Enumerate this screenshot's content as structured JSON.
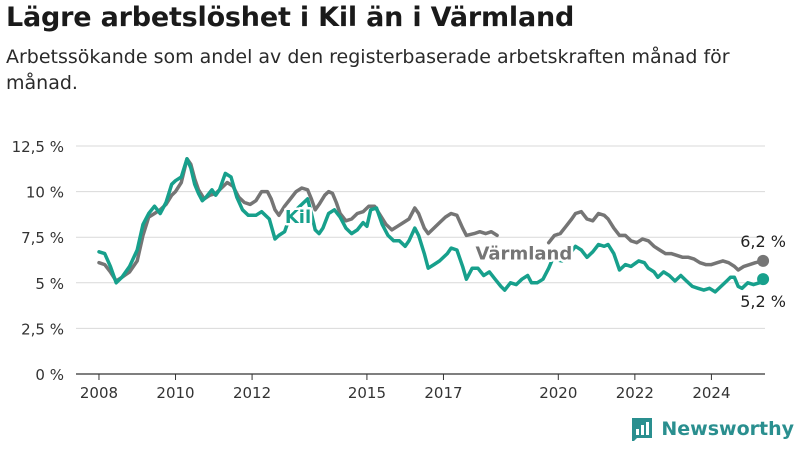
{
  "header": {
    "title": "Lägre arbetslöshet i Kil än i Värmland",
    "subtitle": "Arbetssökande som andel av den registerbaserade arbetskraften månad för månad."
  },
  "brand": {
    "name": "Newsworthy",
    "color": "#2a8f8f"
  },
  "colors": {
    "kil": "#17a08c",
    "varmland": "#757575",
    "grid": "#d9d9d9",
    "axis": "#333333"
  },
  "chart_data": {
    "type": "line",
    "x_ticks": [
      2008,
      2010,
      2012,
      2015,
      2017,
      2020,
      2022,
      2024
    ],
    "y_ticks": [
      "0 %",
      "2,5 %",
      "5 %",
      "7,5 %",
      "10 %",
      "12,5 %"
    ],
    "ylim": [
      0,
      12.5
    ],
    "xlim": [
      2007.4,
      2025.4
    ],
    "grid": true,
    "series": [
      {
        "name": "Kil",
        "color": "#17a08c",
        "label_year": 2013.2,
        "label_value": 8.6,
        "end_label": "5,2 %",
        "points": [
          [
            2008.0,
            6.7
          ],
          [
            2008.15,
            6.6
          ],
          [
            2008.3,
            5.9
          ],
          [
            2008.45,
            5.0
          ],
          [
            2008.6,
            5.3
          ],
          [
            2008.8,
            5.9
          ],
          [
            2009.0,
            6.8
          ],
          [
            2009.15,
            8.2
          ],
          [
            2009.3,
            8.8
          ],
          [
            2009.45,
            9.2
          ],
          [
            2009.6,
            8.8
          ],
          [
            2009.75,
            9.4
          ],
          [
            2009.9,
            10.4
          ],
          [
            2010.0,
            10.6
          ],
          [
            2010.15,
            10.8
          ],
          [
            2010.3,
            11.8
          ],
          [
            2010.4,
            11.3
          ],
          [
            2010.5,
            10.4
          ],
          [
            2010.6,
            9.9
          ],
          [
            2010.7,
            9.5
          ],
          [
            2010.8,
            9.7
          ],
          [
            2010.95,
            10.1
          ],
          [
            2011.05,
            9.8
          ],
          [
            2011.15,
            10.1
          ],
          [
            2011.3,
            11.0
          ],
          [
            2011.45,
            10.8
          ],
          [
            2011.6,
            9.7
          ],
          [
            2011.75,
            9.0
          ],
          [
            2011.9,
            8.7
          ],
          [
            2012.1,
            8.7
          ],
          [
            2012.25,
            8.9
          ],
          [
            2012.45,
            8.5
          ],
          [
            2012.6,
            7.4
          ],
          [
            2012.7,
            7.6
          ],
          [
            2012.85,
            7.8
          ],
          [
            2013.0,
            8.7
          ],
          [
            2013.15,
            9.0
          ],
          [
            2013.3,
            9.3
          ],
          [
            2013.45,
            9.6
          ],
          [
            2013.55,
            8.8
          ],
          [
            2013.65,
            7.9
          ],
          [
            2013.75,
            7.7
          ],
          [
            2013.85,
            8.0
          ],
          [
            2014.0,
            8.8
          ],
          [
            2014.15,
            9.0
          ],
          [
            2014.3,
            8.6
          ],
          [
            2014.45,
            8.0
          ],
          [
            2014.6,
            7.7
          ],
          [
            2014.75,
            7.9
          ],
          [
            2014.9,
            8.3
          ],
          [
            2015.0,
            8.1
          ],
          [
            2015.1,
            9.0
          ],
          [
            2015.25,
            9.1
          ],
          [
            2015.4,
            8.2
          ],
          [
            2015.55,
            7.6
          ],
          [
            2015.7,
            7.3
          ],
          [
            2015.85,
            7.3
          ],
          [
            2016.0,
            7.0
          ],
          [
            2016.1,
            7.3
          ],
          [
            2016.25,
            8.0
          ],
          [
            2016.35,
            7.6
          ],
          [
            2016.5,
            6.6
          ],
          [
            2016.6,
            5.8
          ],
          [
            2016.75,
            6.0
          ],
          [
            2016.9,
            6.2
          ],
          [
            2017.1,
            6.6
          ],
          [
            2017.2,
            6.9
          ],
          [
            2017.35,
            6.8
          ],
          [
            2017.5,
            5.9
          ],
          [
            2017.6,
            5.2
          ],
          [
            2017.75,
            5.8
          ],
          [
            2017.9,
            5.8
          ],
          [
            2018.05,
            5.4
          ],
          [
            2018.2,
            5.6
          ],
          [
            2018.35,
            5.2
          ],
          [
            2018.5,
            4.8
          ],
          [
            2018.6,
            4.6
          ],
          [
            2018.75,
            5.0
          ],
          [
            2018.9,
            4.9
          ],
          [
            2019.05,
            5.2
          ],
          [
            2019.2,
            5.4
          ],
          [
            2019.3,
            5.0
          ],
          [
            2019.45,
            5.0
          ],
          [
            2019.6,
            5.2
          ],
          [
            2019.75,
            5.8
          ],
          [
            2019.85,
            6.3
          ],
          [
            2020.1,
            6.2
          ],
          [
            2020.3,
            6.6
          ],
          [
            2020.45,
            7.0
          ],
          [
            2020.6,
            6.8
          ],
          [
            2020.75,
            6.4
          ],
          [
            2020.9,
            6.7
          ],
          [
            2021.05,
            7.1
          ],
          [
            2021.2,
            7.0
          ],
          [
            2021.3,
            7.1
          ],
          [
            2021.45,
            6.6
          ],
          [
            2021.6,
            5.7
          ],
          [
            2021.75,
            6.0
          ],
          [
            2021.9,
            5.9
          ],
          [
            2022.1,
            6.2
          ],
          [
            2022.25,
            6.1
          ],
          [
            2022.35,
            5.8
          ],
          [
            2022.5,
            5.6
          ],
          [
            2022.6,
            5.3
          ],
          [
            2022.75,
            5.6
          ],
          [
            2022.9,
            5.4
          ],
          [
            2023.05,
            5.1
          ],
          [
            2023.2,
            5.4
          ],
          [
            2023.35,
            5.1
          ],
          [
            2023.5,
            4.8
          ],
          [
            2023.65,
            4.7
          ],
          [
            2023.8,
            4.6
          ],
          [
            2023.95,
            4.7
          ],
          [
            2024.1,
            4.5
          ],
          [
            2024.25,
            4.8
          ],
          [
            2024.4,
            5.1
          ],
          [
            2024.5,
            5.3
          ],
          [
            2024.6,
            5.3
          ],
          [
            2024.7,
            4.8
          ],
          [
            2024.8,
            4.7
          ],
          [
            2024.95,
            5.0
          ],
          [
            2025.1,
            4.9
          ],
          [
            2025.25,
            5.0
          ],
          [
            2025.35,
            5.2
          ]
        ]
      },
      {
        "name": "Värmland",
        "color": "#757575",
        "label_year": 2019.1,
        "label_value": 6.6,
        "end_label": "6,2 %",
        "points": [
          [
            2008.0,
            6.1
          ],
          [
            2008.15,
            6.0
          ],
          [
            2008.3,
            5.6
          ],
          [
            2008.45,
            5.1
          ],
          [
            2008.6,
            5.3
          ],
          [
            2008.8,
            5.6
          ],
          [
            2009.0,
            6.2
          ],
          [
            2009.15,
            7.6
          ],
          [
            2009.3,
            8.6
          ],
          [
            2009.45,
            8.8
          ],
          [
            2009.6,
            9.0
          ],
          [
            2009.75,
            9.3
          ],
          [
            2009.9,
            9.8
          ],
          [
            2010.0,
            10.0
          ],
          [
            2010.15,
            10.5
          ],
          [
            2010.3,
            11.8
          ],
          [
            2010.4,
            11.5
          ],
          [
            2010.5,
            10.7
          ],
          [
            2010.6,
            10.1
          ],
          [
            2010.75,
            9.6
          ],
          [
            2010.9,
            9.8
          ],
          [
            2011.05,
            9.9
          ],
          [
            2011.2,
            10.2
          ],
          [
            2011.35,
            10.5
          ],
          [
            2011.5,
            10.3
          ],
          [
            2011.65,
            9.7
          ],
          [
            2011.8,
            9.4
          ],
          [
            2011.95,
            9.3
          ],
          [
            2012.1,
            9.5
          ],
          [
            2012.25,
            10.0
          ],
          [
            2012.4,
            10.0
          ],
          [
            2012.5,
            9.6
          ],
          [
            2012.6,
            9.0
          ],
          [
            2012.7,
            8.7
          ],
          [
            2012.85,
            9.2
          ],
          [
            2013.0,
            9.6
          ],
          [
            2013.15,
            10.0
          ],
          [
            2013.3,
            10.2
          ],
          [
            2013.45,
            10.1
          ],
          [
            2013.55,
            9.6
          ],
          [
            2013.65,
            9.0
          ],
          [
            2013.75,
            9.3
          ],
          [
            2013.9,
            9.8
          ],
          [
            2014.0,
            10.0
          ],
          [
            2014.1,
            9.9
          ],
          [
            2014.2,
            9.4
          ],
          [
            2014.3,
            8.8
          ],
          [
            2014.45,
            8.4
          ],
          [
            2014.6,
            8.5
          ],
          [
            2014.75,
            8.8
          ],
          [
            2014.9,
            8.9
          ],
          [
            2015.05,
            9.2
          ],
          [
            2015.2,
            9.2
          ],
          [
            2015.35,
            8.7
          ],
          [
            2015.5,
            8.2
          ],
          [
            2015.65,
            7.9
          ],
          [
            2015.8,
            8.1
          ],
          [
            2015.95,
            8.3
          ],
          [
            2016.1,
            8.5
          ],
          [
            2016.25,
            9.1
          ],
          [
            2016.35,
            8.8
          ],
          [
            2016.5,
            8.0
          ],
          [
            2016.6,
            7.7
          ],
          [
            2016.75,
            8.0
          ],
          [
            2016.9,
            8.3
          ],
          [
            2017.05,
            8.6
          ],
          [
            2017.2,
            8.8
          ],
          [
            2017.35,
            8.7
          ],
          [
            2017.5,
            8.0
          ],
          [
            2017.6,
            7.6
          ],
          [
            2017.8,
            7.7
          ],
          [
            2017.95,
            7.8
          ],
          [
            2018.1,
            7.7
          ],
          [
            2018.25,
            7.8
          ],
          [
            2018.4,
            7.6
          ],
          [
            2019.75,
            7.2
          ],
          [
            2019.9,
            7.6
          ],
          [
            2020.05,
            7.7
          ],
          [
            2020.2,
            8.1
          ],
          [
            2020.35,
            8.5
          ],
          [
            2020.45,
            8.8
          ],
          [
            2020.6,
            8.9
          ],
          [
            2020.75,
            8.5
          ],
          [
            2020.9,
            8.4
          ],
          [
            2021.05,
            8.8
          ],
          [
            2021.2,
            8.7
          ],
          [
            2021.3,
            8.5
          ],
          [
            2021.45,
            8.0
          ],
          [
            2021.6,
            7.6
          ],
          [
            2021.75,
            7.6
          ],
          [
            2021.9,
            7.3
          ],
          [
            2022.05,
            7.2
          ],
          [
            2022.2,
            7.4
          ],
          [
            2022.35,
            7.3
          ],
          [
            2022.5,
            7.0
          ],
          [
            2022.65,
            6.8
          ],
          [
            2022.8,
            6.6
          ],
          [
            2022.95,
            6.6
          ],
          [
            2023.1,
            6.5
          ],
          [
            2023.25,
            6.4
          ],
          [
            2023.4,
            6.4
          ],
          [
            2023.55,
            6.3
          ],
          [
            2023.7,
            6.1
          ],
          [
            2023.85,
            6.0
          ],
          [
            2024.0,
            6.0
          ],
          [
            2024.15,
            6.1
          ],
          [
            2024.3,
            6.2
          ],
          [
            2024.45,
            6.1
          ],
          [
            2024.6,
            5.9
          ],
          [
            2024.7,
            5.7
          ],
          [
            2024.85,
            5.9
          ],
          [
            2025.0,
            6.0
          ],
          [
            2025.15,
            6.1
          ],
          [
            2025.35,
            6.2
          ]
        ]
      }
    ]
  }
}
